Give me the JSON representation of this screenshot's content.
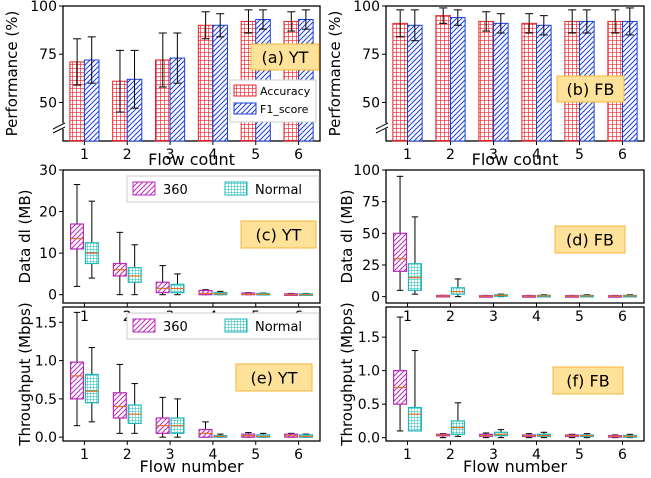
{
  "chart_data": [
    {
      "id": "a",
      "type": "bar",
      "title": "(a) YT",
      "xlabel": "Flow count",
      "ylabel": "Performance (%)",
      "ylim": [
        30,
        100
      ],
      "axis_break": true,
      "yticks": [
        50,
        75,
        100
      ],
      "categories": [
        "1",
        "2",
        "3",
        "4",
        "5",
        "6"
      ],
      "legend": {
        "position": "right",
        "entries": [
          "Accuracy",
          "F1_score"
        ]
      },
      "series": [
        {
          "name": "Accuracy",
          "pattern": "grid",
          "color": "#e8202a",
          "values": [
            71,
            61,
            72,
            90,
            92,
            92
          ],
          "err": [
            12,
            16,
            14,
            7,
            6,
            5
          ]
        },
        {
          "name": "F1_score",
          "pattern": "hatch",
          "color": "#1c3fd8",
          "values": [
            72,
            62,
            73,
            90,
            93,
            93
          ],
          "err": [
            12,
            15,
            13,
            6,
            5,
            5
          ]
        }
      ]
    },
    {
      "id": "b",
      "type": "bar",
      "title": "(b) FB",
      "xlabel": "Flow count",
      "ylabel": "Performance (%)",
      "ylim": [
        30,
        100
      ],
      "axis_break": true,
      "yticks": [
        50,
        75,
        100
      ],
      "categories": [
        "1",
        "2",
        "3",
        "4",
        "5",
        "6"
      ],
      "series": [
        {
          "name": "Accuracy",
          "pattern": "grid",
          "color": "#e8202a",
          "values": [
            91,
            95,
            92,
            91,
            92,
            92
          ],
          "err": [
            7,
            4,
            5,
            5,
            6,
            6
          ]
        },
        {
          "name": "F1_score",
          "pattern": "hatch",
          "color": "#1c3fd8",
          "values": [
            90,
            94,
            91,
            90,
            92,
            92
          ],
          "err": [
            8,
            4,
            5,
            5,
            6,
            7
          ]
        }
      ]
    },
    {
      "id": "c",
      "type": "box",
      "title": "(c) YT",
      "ylabel": "Data dl (MB)",
      "ylim": [
        -2,
        30
      ],
      "yticks": [
        0,
        10,
        20,
        30
      ],
      "categories": [
        "1",
        "2",
        "3",
        "4",
        "5",
        "6"
      ],
      "legend": {
        "position": "top",
        "entries": [
          "360",
          "Normal"
        ]
      },
      "series": [
        {
          "name": "360",
          "pattern": "hatch",
          "color": "#b82ab8",
          "boxes": [
            [
              2,
              11,
              13.5,
              17,
              26.5
            ],
            [
              0,
              4.5,
              6,
              7.5,
              15
            ],
            [
              0,
              0.5,
              1.5,
              3,
              7
            ],
            [
              0,
              0,
              0.3,
              1,
              1.2
            ],
            [
              0,
              0,
              0.1,
              0.4,
              0.5
            ],
            [
              0,
              0,
              0,
              0.2,
              0.3
            ]
          ]
        },
        {
          "name": "Normal",
          "pattern": "grid",
          "color": "#1eb8b8",
          "boxes": [
            [
              4,
              7.5,
              10,
              12.5,
              22.5
            ],
            [
              0,
              3,
              4.5,
              6.5,
              12
            ],
            [
              0,
              0.5,
              1.5,
              2.5,
              5
            ],
            [
              0,
              0,
              0.2,
              0.5,
              0.8
            ],
            [
              0,
              0,
              0.1,
              0.3,
              0.4
            ],
            [
              0,
              0,
              0,
              0.2,
              0.3
            ]
          ]
        }
      ]
    },
    {
      "id": "d",
      "type": "box",
      "title": "(d) FB",
      "ylabel": "Data dl (MB)",
      "ylim": [
        -5,
        100
      ],
      "yticks": [
        0,
        25,
        50,
        75,
        100
      ],
      "categories": [
        "1",
        "2",
        "3",
        "4",
        "5",
        "6"
      ],
      "series": [
        {
          "name": "360",
          "pattern": "hatch",
          "color": "#b82ab8",
          "boxes": [
            [
              5,
              20,
              30,
              50,
              95
            ],
            [
              0,
              0.2,
              0.5,
              1,
              1
            ],
            [
              0,
              0.2,
              0.4,
              0.8,
              1
            ],
            [
              0,
              0.2,
              0.4,
              0.8,
              1
            ],
            [
              0,
              0.2,
              0.4,
              0.8,
              1
            ],
            [
              0,
              0.2,
              0.4,
              0.8,
              1
            ]
          ]
        },
        {
          "name": "Normal",
          "pattern": "grid",
          "color": "#1eb8b8",
          "boxes": [
            [
              2,
              5,
              15,
              26,
              63
            ],
            [
              0,
              2,
              4,
              7,
              14
            ],
            [
              0,
              0.5,
              1,
              1.5,
              2
            ],
            [
              0,
              0.3,
              0.6,
              1,
              1.5
            ],
            [
              0,
              0.3,
              0.6,
              1,
              1.5
            ],
            [
              0,
              0.3,
              0.6,
              1,
              1.5
            ]
          ]
        }
      ]
    },
    {
      "id": "e",
      "type": "box",
      "title": "(e) YT",
      "xlabel": "Flow number",
      "ylabel": "Throughput (Mbps)",
      "ylim": [
        -0.05,
        1.7
      ],
      "yticks": [
        0.0,
        0.5,
        1.0,
        1.5
      ],
      "categories": [
        "1",
        "2",
        "3",
        "4",
        "5",
        "6"
      ],
      "legend": {
        "position": "top",
        "entries": [
          "360",
          "Normal"
        ]
      },
      "series": [
        {
          "name": "360",
          "pattern": "hatch",
          "color": "#b82ab8",
          "boxes": [
            [
              0.15,
              0.5,
              0.8,
              0.98,
              1.63
            ],
            [
              0.05,
              0.25,
              0.4,
              0.58,
              0.95
            ],
            [
              0,
              0.05,
              0.15,
              0.25,
              0.52
            ],
            [
              0,
              0,
              0.05,
              0.1,
              0.2
            ],
            [
              0,
              0,
              0.02,
              0.04,
              0.06
            ],
            [
              0,
              0,
              0.02,
              0.04,
              0.05
            ]
          ]
        },
        {
          "name": "Normal",
          "pattern": "grid",
          "color": "#1eb8b8",
          "boxes": [
            [
              0.2,
              0.45,
              0.6,
              0.82,
              1.17
            ],
            [
              0.05,
              0.18,
              0.3,
              0.42,
              0.7
            ],
            [
              0,
              0.05,
              0.15,
              0.25,
              0.5
            ],
            [
              0,
              0,
              0.01,
              0.02,
              0.04
            ],
            [
              0,
              0,
              0.01,
              0.03,
              0.05
            ],
            [
              0,
              0,
              0.01,
              0.03,
              0.04
            ]
          ]
        }
      ]
    },
    {
      "id": "f",
      "type": "box",
      "title": "(f) FB",
      "xlabel": "Flow number",
      "ylabel": "Throughput (Mbps)",
      "ylim": [
        -0.05,
        1.95
      ],
      "yticks": [
        0.0,
        0.5,
        1.0,
        1.5
      ],
      "categories": [
        "1",
        "2",
        "3",
        "4",
        "5",
        "6"
      ],
      "series": [
        {
          "name": "360",
          "pattern": "hatch",
          "color": "#b82ab8",
          "boxes": [
            [
              0.1,
              0.5,
              0.75,
              1.0,
              1.8
            ],
            [
              0,
              0.03,
              0.04,
              0.05,
              0.06
            ],
            [
              0,
              0.02,
              0.03,
              0.05,
              0.07
            ],
            [
              0,
              0.02,
              0.03,
              0.04,
              0.06
            ],
            [
              0,
              0.02,
              0.03,
              0.04,
              0.05
            ],
            [
              0,
              0.02,
              0.02,
              0.03,
              0.04
            ]
          ]
        },
        {
          "name": "Normal",
          "pattern": "grid",
          "color": "#1eb8b8",
          "boxes": [
            [
              0.1,
              0.1,
              0.35,
              0.45,
              1.3
            ],
            [
              0.02,
              0.05,
              0.15,
              0.25,
              0.52
            ],
            [
              0,
              0.03,
              0.05,
              0.08,
              0.12
            ],
            [
              0,
              0.02,
              0.03,
              0.05,
              0.08
            ],
            [
              0,
              0.02,
              0.03,
              0.04,
              0.06
            ],
            [
              0,
              0.02,
              0.02,
              0.03,
              0.05
            ]
          ]
        }
      ]
    }
  ]
}
